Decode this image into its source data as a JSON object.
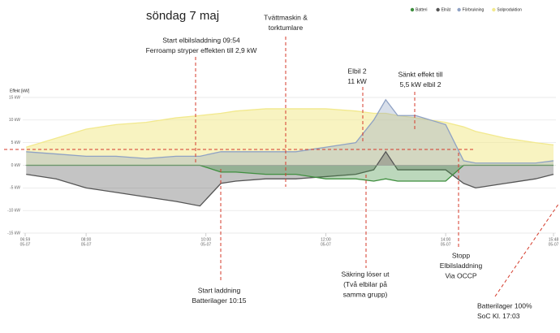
{
  "chart_data": {
    "type": "area",
    "title": "söndag  7 maj",
    "y_label": "Effekt [kW]",
    "x": [
      7,
      7.5,
      8,
      8.5,
      9,
      9.5,
      9.9,
      10.25,
      10.5,
      11,
      11.5,
      12,
      12.5,
      12.8,
      13.0,
      13.2,
      13.5,
      14,
      14.3,
      14.5,
      15,
      15.5,
      15.8
    ],
    "series": [
      {
        "name": "Solproduktion",
        "color": "#f2e98e",
        "values": [
          4,
          6,
          8,
          9,
          9.5,
          10.5,
          11,
          11.5,
          12,
          12.5,
          12.5,
          12.5,
          12,
          11.5,
          11.5,
          11,
          10.5,
          9.5,
          8.5,
          7.5,
          6,
          5,
          4.5
        ]
      },
      {
        "name": "Förbrukning",
        "color": "#8fa2c4",
        "values": [
          3,
          2.5,
          2,
          2,
          1.5,
          2,
          2,
          3,
          3,
          3,
          3,
          4,
          5,
          10,
          14.5,
          11,
          11,
          9,
          1,
          0.5,
          0.5,
          0.5,
          1
        ]
      },
      {
        "name": "Elnät",
        "color": "#555555",
        "values": [
          -2,
          -3,
          -5,
          -6,
          -7,
          -8,
          -9,
          -4,
          -3.5,
          -3,
          -3,
          -2.5,
          -2,
          -1,
          3,
          -1,
          -1,
          -1,
          -4,
          -5,
          -4,
          -3,
          -2
        ]
      },
      {
        "name": "Batteri",
        "color": "#3f8f3f",
        "values": [
          0,
          0,
          0,
          0,
          0,
          0,
          0,
          -1.5,
          -1.5,
          -2,
          -2,
          -3,
          -3,
          -3.5,
          -3,
          -3.5,
          -3.5,
          -3.5,
          0,
          0,
          0,
          0,
          0
        ]
      }
    ],
    "ylim": [
      -15,
      15
    ],
    "yticks": [
      {
        "value": -15,
        "label": "-15 kW"
      },
      {
        "value": -10,
        "label": "-10 kW"
      },
      {
        "value": -5,
        "label": "-5 kW"
      },
      {
        "value": 0,
        "label": "0 kW"
      },
      {
        "value": 5,
        "label": "5 kW"
      },
      {
        "value": 10,
        "label": "10 kW"
      },
      {
        "value": 15,
        "label": "15 kW"
      }
    ],
    "xlim": [
      6.983,
      15.8
    ],
    "xticks": [
      {
        "value": 6.983,
        "label": "06:59"
      },
      {
        "value": 8,
        "label": "08:00"
      },
      {
        "value": 10,
        "label": "10:00"
      },
      {
        "value": 12,
        "label": "12:00"
      },
      {
        "value": 14,
        "label": "14:00"
      },
      {
        "value": 15.8,
        "label": "15:48"
      }
    ],
    "xtick_dates": [
      "05-07",
      "05-07",
      "05-07",
      "05-07",
      "05-07",
      "05-07"
    ],
    "grid": true,
    "legend": "top-right",
    "annotations": [
      {
        "lines": [
          "Start elbilsladdning 09:54",
          "Ferroamp stryper effekten till 2,9 kW"
        ]
      },
      {
        "lines": [
          "Tvättmaskin  &",
          "torktumlare"
        ]
      },
      {
        "lines": [
          "Elbil 2",
          "11 kW"
        ]
      },
      {
        "lines": [
          "Sänkt effekt till",
          "5,5 kW elbil 2"
        ]
      },
      {
        "lines": [
          "Start laddning",
          "Batterilager 10:15"
        ]
      },
      {
        "lines": [
          "Säkring löser ut",
          "(Två elbilar på",
          "samma grupp)"
        ]
      },
      {
        "lines": [
          "Stopp",
          "Elbilsladdning",
          "Via OCCP"
        ]
      },
      {
        "lines": [
          "Batterilager 100%",
          "SoC Kl. 17:03"
        ]
      }
    ]
  }
}
